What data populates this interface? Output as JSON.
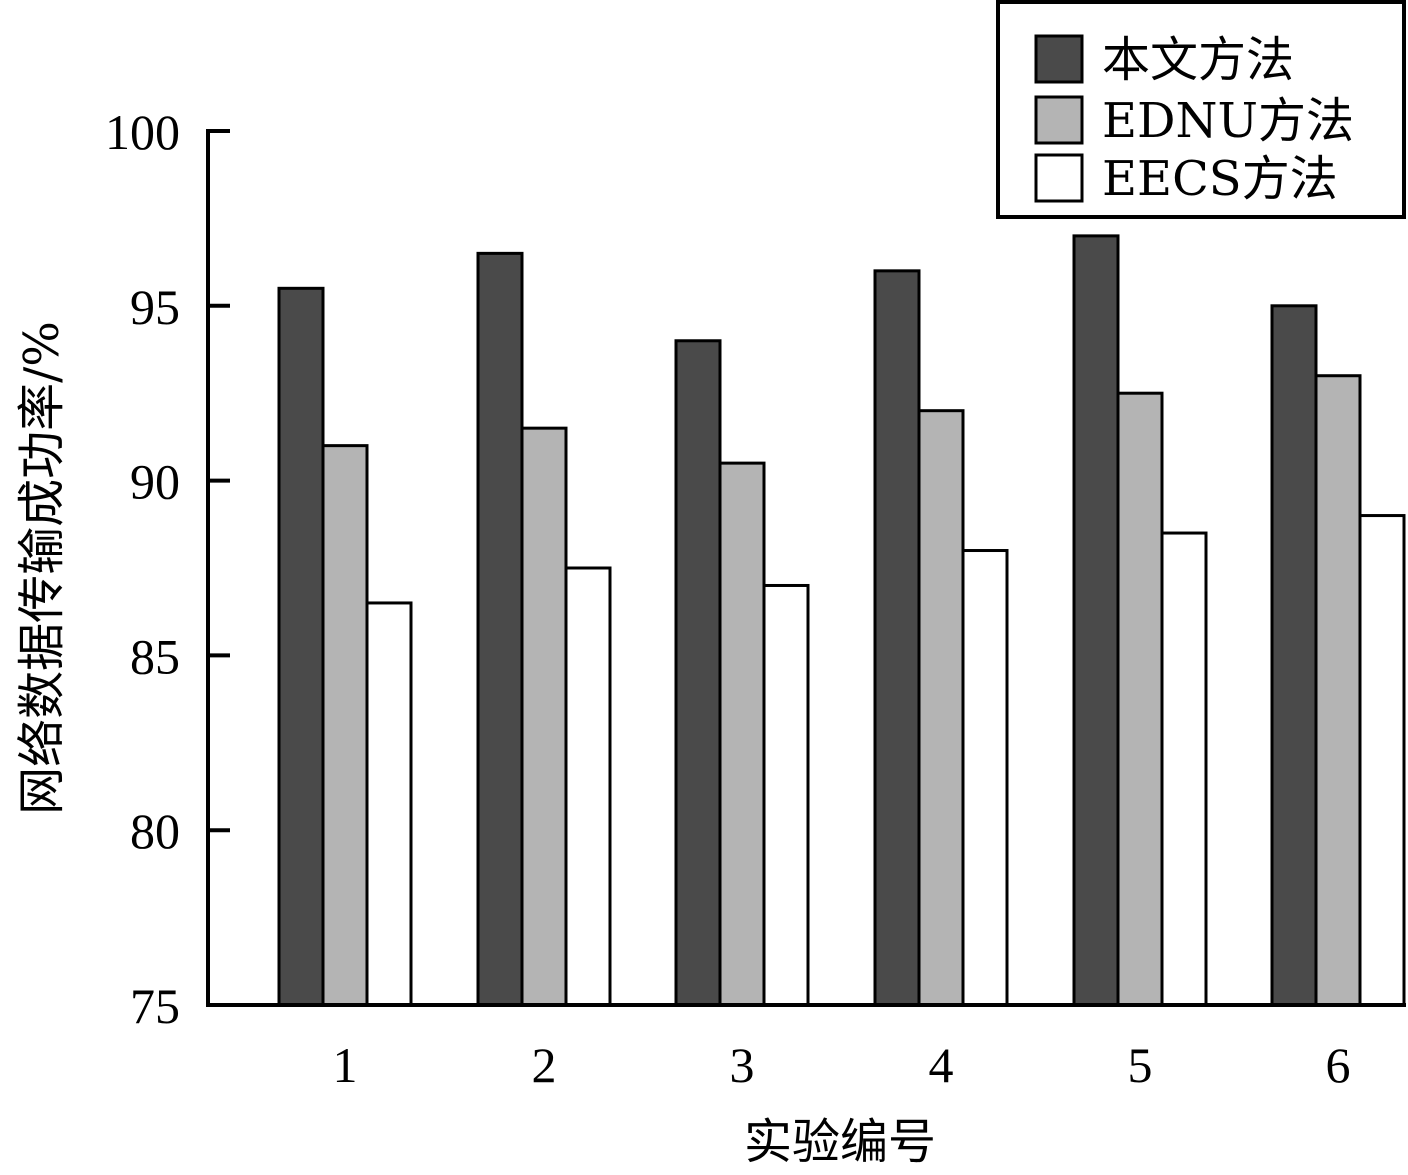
{
  "chart_data": {
    "type": "bar",
    "title": "",
    "xlabel": "实验编号",
    "ylabel": "网络数据传输成功率/%",
    "categories": [
      "1",
      "2",
      "3",
      "4",
      "5",
      "6"
    ],
    "ylim": [
      75,
      100
    ],
    "yticks": [
      "75",
      "80",
      "85",
      "90",
      "95",
      "100"
    ],
    "grid": false,
    "legend_position": "top-right",
    "series": [
      {
        "name": "本文方法",
        "color": "#4a4a4a",
        "values": [
          95.5,
          96.5,
          94.0,
          96.0,
          97.0,
          95.0
        ]
      },
      {
        "name": "EDNU方法",
        "color": "#b4b4b4",
        "values": [
          91.0,
          91.5,
          90.5,
          92.0,
          92.5,
          93.0
        ]
      },
      {
        "name": "EECS方法",
        "color": "#ffffff",
        "values": [
          86.5,
          87.5,
          87.0,
          88.0,
          88.5,
          89.0
        ]
      }
    ]
  }
}
